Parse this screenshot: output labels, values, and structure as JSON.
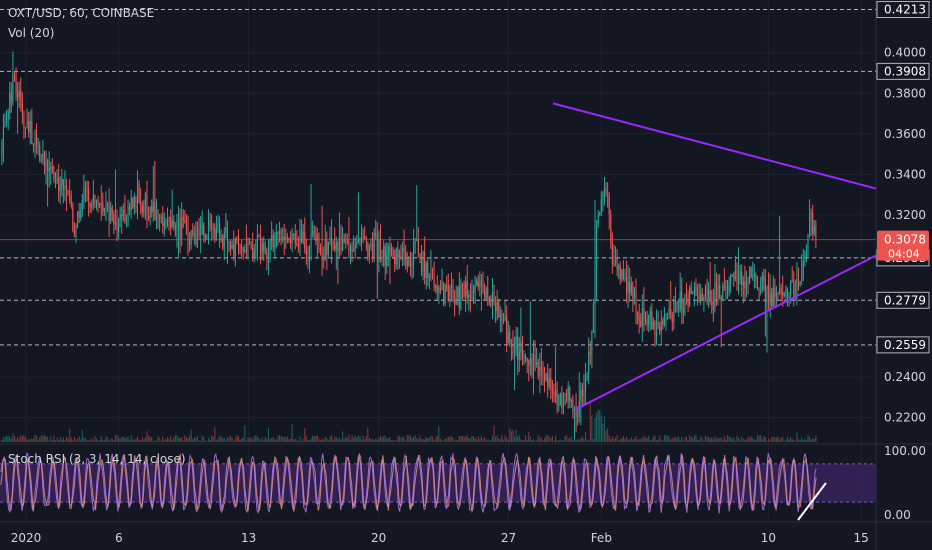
{
  "header": {
    "symbol_line": "OXT/USD, 60, COINBASE",
    "volume_label": "Vol (20)",
    "rsi_label": "Stoch RSI (3, 3, 14, 14, close)"
  },
  "colors": {
    "background": "#131722",
    "up": "#26a69a",
    "down": "#ef5350",
    "trendline": "#9c27ff",
    "rsi_band": "#4a2a7a",
    "rsi_k": "#9a6cd8",
    "rsi_d": "#e09080",
    "price_tag": "#ef5350",
    "level_tag": "#ffffff",
    "grid": "#1e2230"
  },
  "chart_data": {
    "type": "candlestick",
    "main": {
      "ylim": [
        0.208,
        0.426
      ],
      "y_ticks": [
        "0.4000",
        "0.3800",
        "0.3600",
        "0.3400",
        "0.3200",
        "0.2988",
        "0.2400",
        "0.2200"
      ],
      "level_lines": [
        "0.4213",
        "0.3908",
        "0.2988",
        "0.2779",
        "0.2559"
      ],
      "current_price": "0.3078",
      "countdown": "04:04",
      "x_labels": [
        "2020",
        "6",
        "13",
        "20",
        "27",
        "Feb",
        "10",
        "15"
      ],
      "x_label_days": [
        1,
        6,
        13,
        20,
        27,
        32,
        41,
        46
      ],
      "x_range_days": [
        -0.4,
        46.8
      ],
      "upper_trendline": {
        "start": [
          29.4,
          0.375
        ],
        "end": [
          46.8,
          0.333
        ]
      },
      "lower_trendline": {
        "start": [
          30.6,
          0.224
        ],
        "end": [
          46.8,
          0.3
        ]
      },
      "price_path": [
        [
          -0.4,
          0.35
        ],
        [
          0.4,
          0.39
        ],
        [
          0.8,
          0.37
        ],
        [
          1.5,
          0.355
        ],
        [
          2.2,
          0.34
        ],
        [
          3.0,
          0.335
        ],
        [
          3.6,
          0.315
        ],
        [
          4.2,
          0.33
        ],
        [
          5.0,
          0.325
        ],
        [
          6.0,
          0.315
        ],
        [
          7.0,
          0.33
        ],
        [
          8.0,
          0.32
        ],
        [
          9.0,
          0.315
        ],
        [
          10.0,
          0.31
        ],
        [
          11.0,
          0.312
        ],
        [
          12.0,
          0.305
        ],
        [
          13.0,
          0.306
        ],
        [
          14.0,
          0.305
        ],
        [
          15.0,
          0.31
        ],
        [
          16.0,
          0.308
        ],
        [
          17.0,
          0.303
        ],
        [
          18.0,
          0.307
        ],
        [
          19.0,
          0.305
        ],
        [
          20.0,
          0.304
        ],
        [
          21.0,
          0.3
        ],
        [
          22.0,
          0.302
        ],
        [
          23.0,
          0.285
        ],
        [
          24.0,
          0.28
        ],
        [
          25.0,
          0.285
        ],
        [
          26.0,
          0.28
        ],
        [
          27.0,
          0.26
        ],
        [
          28.0,
          0.25
        ],
        [
          29.0,
          0.24
        ],
        [
          30.0,
          0.23
        ],
        [
          30.8,
          0.225
        ],
        [
          31.4,
          0.25
        ],
        [
          31.8,
          0.32
        ],
        [
          32.2,
          0.34
        ],
        [
          32.6,
          0.3
        ],
        [
          33.2,
          0.29
        ],
        [
          34.0,
          0.27
        ],
        [
          35.0,
          0.265
        ],
        [
          36.0,
          0.275
        ],
        [
          37.0,
          0.28
        ],
        [
          38.0,
          0.28
        ],
        [
          39.0,
          0.29
        ],
        [
          40.0,
          0.29
        ],
        [
          40.8,
          0.282
        ],
        [
          41.2,
          0.277
        ],
        [
          42.0,
          0.282
        ],
        [
          42.8,
          0.29
        ],
        [
          43.3,
          0.32
        ],
        [
          43.6,
          0.3078
        ]
      ]
    },
    "stoch_rsi": {
      "ylim": [
        -8,
        108
      ],
      "y_ticks": [
        "100.00",
        "0.00"
      ],
      "band": [
        20,
        80
      ]
    }
  }
}
